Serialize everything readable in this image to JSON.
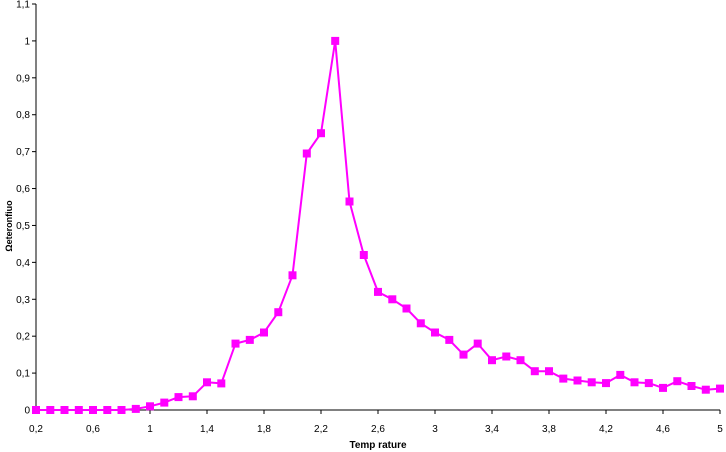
{
  "chart_data": {
    "type": "line",
    "xlabel": "Temp rature",
    "ylabel": "Ωeteronfiuo",
    "xlim": [
      0.2,
      5
    ],
    "ylim": [
      0,
      1.1
    ],
    "x_ticks": [
      "0,2",
      "0,6",
      "1",
      "1,4",
      "1,8",
      "2,2",
      "2,6",
      "3",
      "3,4",
      "3,8",
      "4,2",
      "4,6",
      "5"
    ],
    "y_ticks": [
      "0",
      "0,1",
      "0,2",
      "0,3",
      "0,4",
      "0,5",
      "0,6",
      "0,7",
      "0,8",
      "0,9",
      "1",
      "1,1"
    ],
    "grid": false,
    "legend": "none",
    "series": [
      {
        "color": "#ff00ff",
        "marker": "square",
        "x": [
          0.2,
          0.3,
          0.4,
          0.5,
          0.6,
          0.7,
          0.8,
          0.9,
          1.0,
          1.1,
          1.2,
          1.3,
          1.4,
          1.5,
          1.6,
          1.7,
          1.8,
          1.9,
          2.0,
          2.1,
          2.2,
          2.3,
          2.4,
          2.5,
          2.6,
          2.7,
          2.8,
          2.9,
          3.0,
          3.1,
          3.2,
          3.3,
          3.4,
          3.5,
          3.6,
          3.7,
          3.8,
          3.9,
          4.0,
          4.1,
          4.2,
          4.3,
          4.4,
          4.5,
          4.6,
          4.7,
          4.8,
          4.9,
          5.0
        ],
        "y": [
          0.0,
          0.0,
          0.0,
          0.0,
          0.0,
          0.0,
          0.0,
          0.003,
          0.01,
          0.02,
          0.035,
          0.037,
          0.075,
          0.072,
          0.18,
          0.19,
          0.21,
          0.265,
          0.365,
          0.695,
          0.75,
          1.0,
          0.565,
          0.42,
          0.32,
          0.3,
          0.275,
          0.235,
          0.21,
          0.19,
          0.15,
          0.18,
          0.135,
          0.145,
          0.135,
          0.105,
          0.105,
          0.085,
          0.08,
          0.075,
          0.073,
          0.095,
          0.075,
          0.073,
          0.06,
          0.078,
          0.065,
          0.055,
          0.058
        ]
      }
    ]
  }
}
